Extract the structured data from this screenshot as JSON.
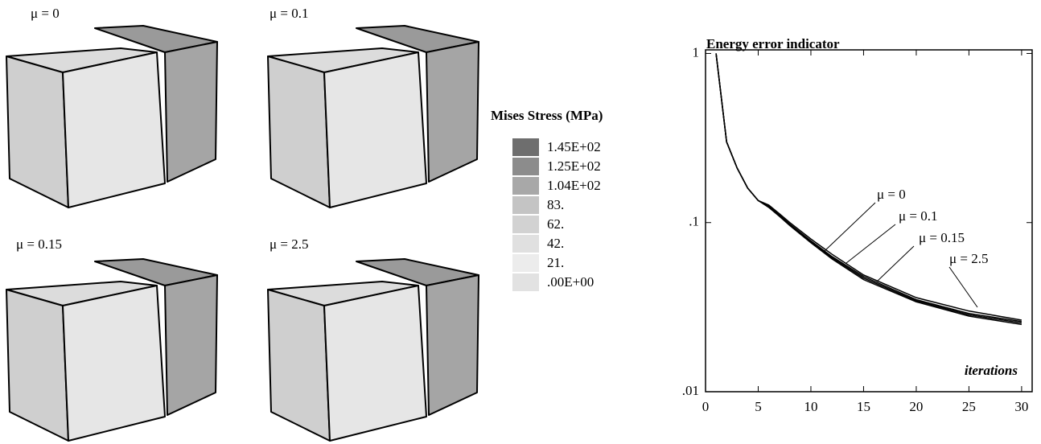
{
  "panels": [
    {
      "label": "μ = 0"
    },
    {
      "label": "μ = 0.1"
    },
    {
      "label": "μ = 0.15"
    },
    {
      "label": "μ = 2.5"
    }
  ],
  "legend": {
    "title": "Mises Stress (MPa)",
    "entries": [
      {
        "label": "1.45E+02",
        "color": "#6e6e6e"
      },
      {
        "label": "1.25E+02",
        "color": "#8c8c8c"
      },
      {
        "label": "1.04E+02",
        "color": "#a8a8a8"
      },
      {
        "label": "83.",
        "color": "#c4c4c4"
      },
      {
        "label": "62.",
        "color": "#d2d2d2"
      },
      {
        "label": "42.",
        "color": "#e0e0e0"
      },
      {
        "label": "21.",
        "color": "#ececec"
      },
      {
        "label": ".00E+00",
        "color": "#e2e2e2"
      }
    ]
  },
  "chart_data": {
    "type": "line",
    "title": "Energy error indicator",
    "x_label": "iterations",
    "x": [
      1,
      2,
      3,
      4,
      5,
      6,
      7,
      8,
      10,
      12,
      15,
      20,
      25,
      30
    ],
    "series": [
      {
        "name": "μ = 0",
        "color": "#000000",
        "values": [
          1,
          0.3,
          0.21,
          0.16,
          0.135,
          0.127,
          0.113,
          0.1,
          0.08,
          0.065,
          0.049,
          0.036,
          0.03,
          0.0265
        ]
      },
      {
        "name": "μ = 0.1",
        "color": "#000000",
        "values": [
          1,
          0.3,
          0.21,
          0.16,
          0.135,
          0.125,
          0.111,
          0.098,
          0.078,
          0.063,
          0.048,
          0.035,
          0.029,
          0.026
        ]
      },
      {
        "name": "μ = 0.15",
        "color": "#000000",
        "values": [
          1,
          0.3,
          0.21,
          0.16,
          0.135,
          0.124,
          0.11,
          0.097,
          0.077,
          0.062,
          0.047,
          0.0345,
          0.0285,
          0.0255
        ]
      },
      {
        "name": "μ = 2.5",
        "color": "#000000",
        "values": [
          1,
          0.3,
          0.21,
          0.16,
          0.135,
          0.123,
          0.109,
          0.096,
          0.076,
          0.061,
          0.046,
          0.034,
          0.028,
          0.025
        ]
      }
    ],
    "xlim": [
      0,
      31
    ],
    "xticks": [
      0,
      5,
      10,
      15,
      20,
      25,
      30
    ],
    "ylim": [
      0.01,
      1.05
    ],
    "log_y": true,
    "yticks": [
      {
        "value": 0.01,
        "label": ".01"
      },
      {
        "value": 0.1,
        "label": ".1"
      },
      {
        "value": 1,
        "label": "1"
      }
    ]
  }
}
